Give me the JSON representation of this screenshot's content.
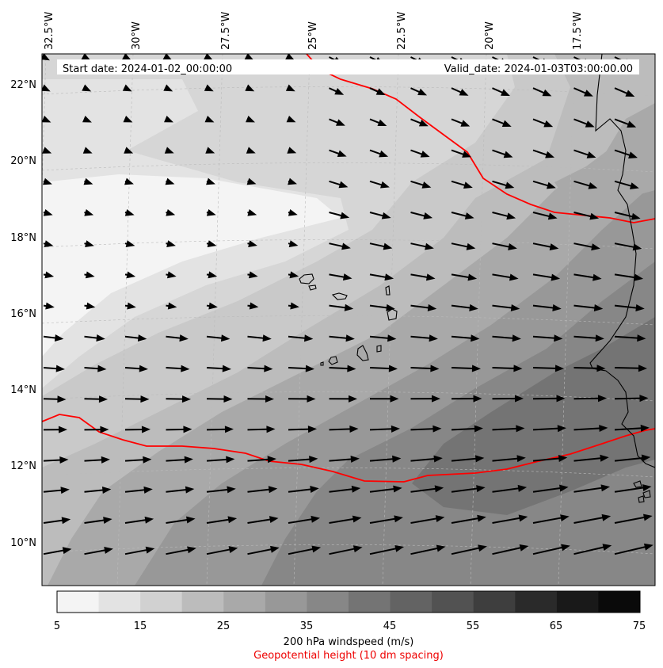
{
  "header": {
    "start_label": "Start date: 2024-01-02_00:00:00",
    "valid_label": "Valid_date: 2024-01-03T03:00:00.00"
  },
  "longitude_labels": [
    "32.5°W",
    "30°W",
    "27.5°W",
    "25°W",
    "22.5°W",
    "20°W",
    "17.5°W"
  ],
  "latitude_labels": [
    "22°N",
    "20°N",
    "18°N",
    "16°N",
    "14°N",
    "12°N",
    "10°N"
  ],
  "colorbar": {
    "ticks": [
      "5",
      "15",
      "25",
      "35",
      "45",
      "55",
      "65",
      "75"
    ],
    "levels": [
      5,
      10,
      15,
      20,
      25,
      30,
      35,
      40,
      45,
      50,
      55,
      60,
      65,
      70,
      75
    ],
    "colors": [
      "#f4f4f4",
      "#e3e3e3",
      "#d1d1d1",
      "#bcbcbc",
      "#a9a9a9",
      "#989898",
      "#878787",
      "#747474",
      "#636363",
      "#525252",
      "#3e3e3e",
      "#2a2a2a",
      "#191919",
      "#0a0a0a"
    ],
    "label": "200 hPa windspeed (m/s)",
    "sublabel": "Geopotential height (10 dm spacing)"
  },
  "colors": {
    "contour": "#ff0000",
    "arrows": "#000000",
    "coast": "#000000"
  }
}
